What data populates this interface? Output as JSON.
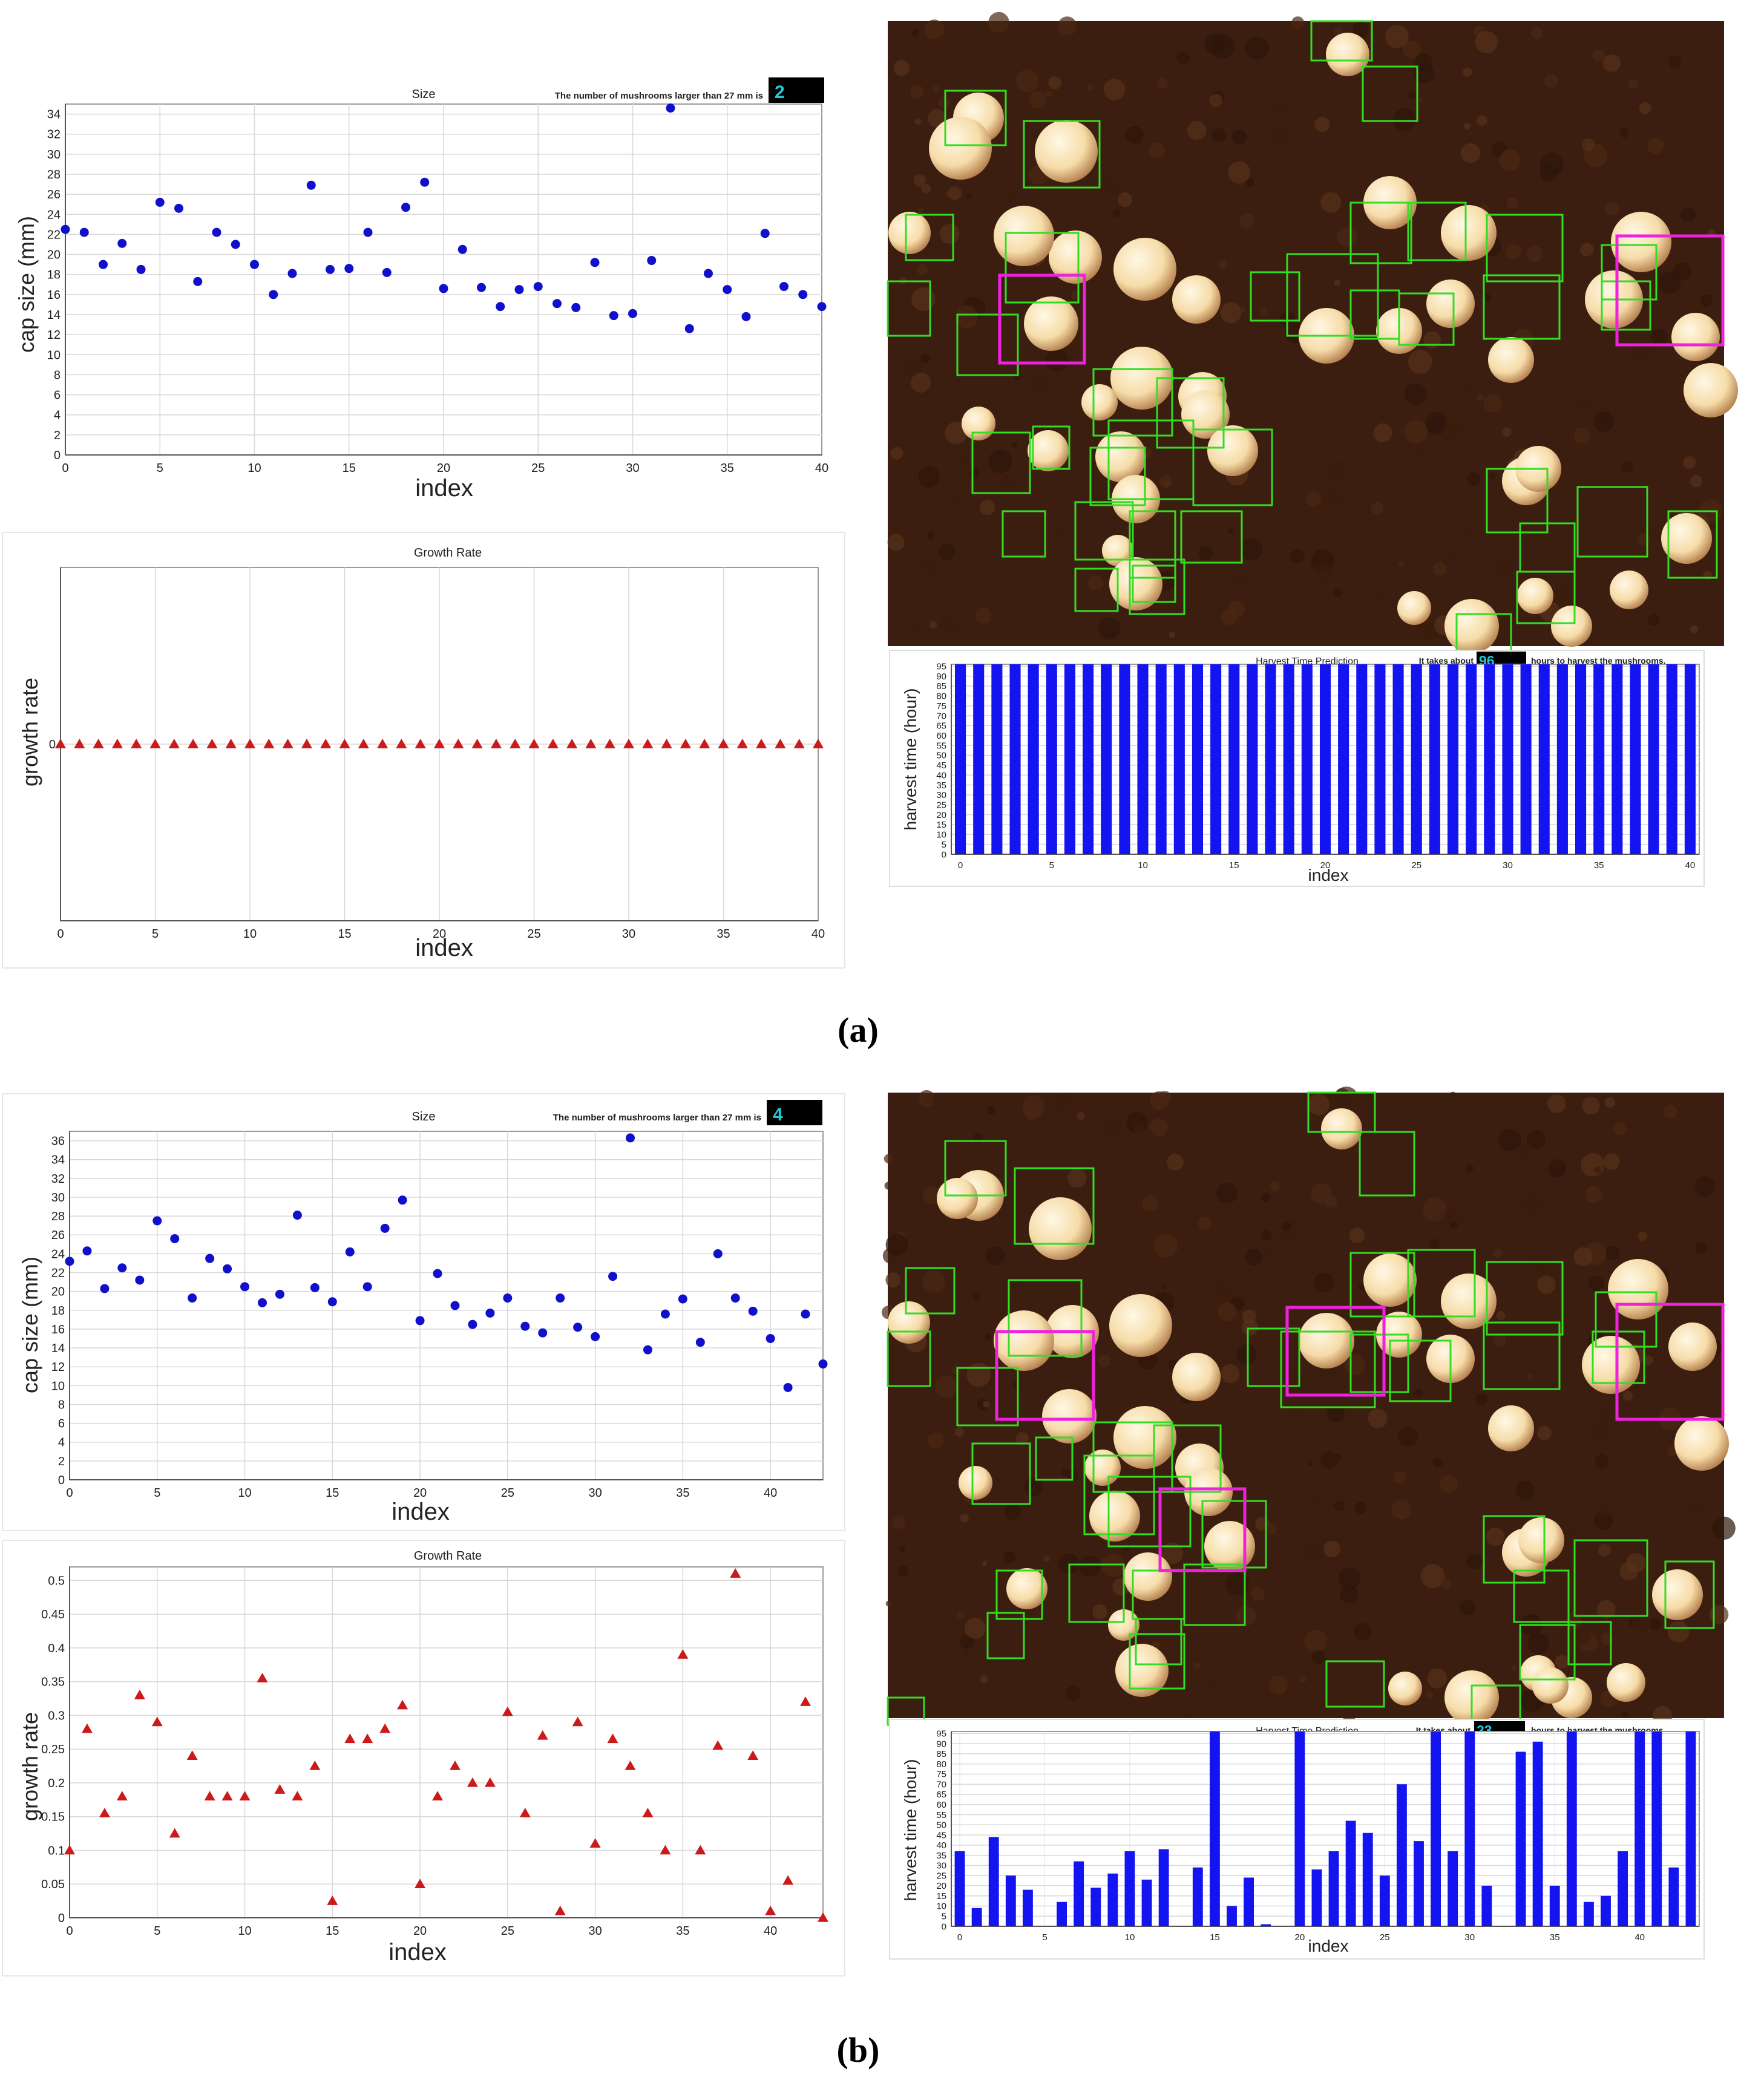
{
  "captions": {
    "a": "(a)",
    "b": "(b)"
  },
  "colors": {
    "dot": "#1010cc",
    "tri": "#cc1a1a",
    "bar": "#1414f0",
    "green": "#33dd22",
    "magenta": "#ee22dd",
    "count_text": "#22c8d8",
    "soil": "#3c1e10"
  },
  "panels": {
    "a": {
      "size_count_label": "The number of mushrooms larger than 27 mm is",
      "size_count_value": "2",
      "harvest_text_pre": "It takes about",
      "harvest_text_value": "96",
      "harvest_text_post": "hours to harvest the mushrooms."
    },
    "b": {
      "size_count_label": "The number of mushrooms larger than 27 mm is",
      "size_count_value": "4",
      "harvest_text_pre": "It takes about",
      "harvest_text_value": "23",
      "harvest_text_post": "hours to harvest the mushrooms."
    }
  },
  "chart_data": [
    {
      "id": "a_size",
      "type": "scatter",
      "marker": "circle",
      "title": "Size",
      "xlabel": "index",
      "ylabel": "cap size (mm)",
      "xlim": [
        0,
        40
      ],
      "ylim": [
        0,
        35
      ],
      "xticks": [
        0,
        5,
        10,
        15,
        20,
        25,
        30,
        35,
        40
      ],
      "yticks": [
        0,
        2,
        4,
        6,
        8,
        10,
        12,
        14,
        16,
        18,
        20,
        22,
        24,
        26,
        28,
        30,
        32,
        34
      ],
      "values": [
        22.5,
        22.2,
        19.0,
        21.1,
        18.5,
        25.2,
        24.6,
        17.3,
        22.2,
        21.0,
        19.0,
        16.0,
        18.1,
        26.9,
        18.5,
        18.6,
        22.2,
        18.2,
        24.7,
        27.2,
        16.6,
        20.5,
        16.7,
        14.8,
        16.5,
        16.8,
        15.1,
        14.7,
        19.2,
        13.9,
        14.1,
        19.4,
        34.6,
        12.6,
        18.1,
        16.5,
        13.8,
        22.1,
        16.8,
        16.0,
        14.8
      ]
    },
    {
      "id": "a_growth",
      "type": "scatter",
      "marker": "triangle",
      "title": "Growth Rate",
      "xlabel": "index",
      "ylabel": "growth rate",
      "xlim": [
        0,
        40
      ],
      "ylim": [
        -1,
        1
      ],
      "xticks": [
        0,
        5,
        10,
        15,
        20,
        25,
        30,
        35,
        40
      ],
      "yticks": [
        0
      ],
      "values": [
        0,
        0,
        0,
        0,
        0,
        0,
        0,
        0,
        0,
        0,
        0,
        0,
        0,
        0,
        0,
        0,
        0,
        0,
        0,
        0,
        0,
        0,
        0,
        0,
        0,
        0,
        0,
        0,
        0,
        0,
        0,
        0,
        0,
        0,
        0,
        0,
        0,
        0,
        0,
        0,
        0
      ]
    },
    {
      "id": "a_harvest",
      "type": "bar",
      "title": "Harvest Time Prediction",
      "xlabel": "index",
      "ylabel": "harvest  time  (hour)",
      "xlim": [
        0,
        40
      ],
      "ylim": [
        0,
        96
      ],
      "xticks": [
        0,
        5,
        10,
        15,
        20,
        25,
        30,
        35,
        40
      ],
      "yticks": [
        0,
        5,
        10,
        15,
        20,
        25,
        30,
        35,
        40,
        45,
        50,
        55,
        60,
        65,
        70,
        75,
        80,
        85,
        90,
        95
      ],
      "values": [
        96,
        96,
        96,
        96,
        96,
        96,
        96,
        96,
        96,
        96,
        96,
        96,
        96,
        96,
        96,
        96,
        96,
        96,
        96,
        96,
        96,
        96,
        96,
        96,
        96,
        96,
        96,
        96,
        96,
        96,
        96,
        96,
        96,
        96,
        96,
        96,
        96,
        96,
        96,
        96,
        96
      ]
    },
    {
      "id": "b_size",
      "type": "scatter",
      "marker": "circle",
      "title": "Size",
      "xlabel": "index",
      "ylabel": "cap size (mm)",
      "xlim": [
        0,
        43
      ],
      "ylim": [
        0,
        37
      ],
      "xticks": [
        0,
        5,
        10,
        15,
        20,
        25,
        30,
        35,
        40
      ],
      "yticks": [
        0,
        2,
        4,
        6,
        8,
        10,
        12,
        14,
        16,
        18,
        20,
        22,
        24,
        26,
        28,
        30,
        32,
        34,
        36
      ],
      "values": [
        23.2,
        24.3,
        20.3,
        22.5,
        21.2,
        27.5,
        25.6,
        19.3,
        23.5,
        22.4,
        20.5,
        18.8,
        19.7,
        28.1,
        20.4,
        18.9,
        24.2,
        20.5,
        26.7,
        29.7,
        16.9,
        21.9,
        18.5,
        16.5,
        17.7,
        19.3,
        16.3,
        15.6,
        19.3,
        16.2,
        15.2,
        21.6,
        36.3,
        13.8,
        17.6,
        19.2,
        14.6,
        24.0,
        19.3,
        17.9,
        15.0,
        9.8,
        17.6,
        12.3
      ]
    },
    {
      "id": "b_growth",
      "type": "scatter",
      "marker": "triangle",
      "title": "Growth Rate",
      "xlabel": "index",
      "ylabel": "growth rate",
      "xlim": [
        0,
        43
      ],
      "ylim": [
        0,
        0.52
      ],
      "xticks": [
        0,
        5,
        10,
        15,
        20,
        25,
        30,
        35,
        40
      ],
      "yticks": [
        0,
        0.05,
        0.1,
        0.15,
        0.2,
        0.25,
        0.3,
        0.35,
        0.4,
        0.45,
        0.5
      ],
      "values": [
        0.1,
        0.28,
        0.155,
        0.18,
        0.33,
        0.29,
        0.125,
        0.24,
        0.18,
        0.18,
        0.18,
        0.355,
        0.19,
        0.18,
        0.225,
        0.025,
        0.265,
        0.265,
        0.28,
        0.315,
        0.05,
        0.18,
        0.225,
        0.2,
        0.2,
        0.305,
        0.155,
        0.27,
        0.01,
        0.29,
        0.11,
        0.265,
        0.225,
        0.155,
        0.1,
        0.39,
        0.1,
        0.255,
        0.51,
        0.24,
        0.01,
        0.055,
        0.32,
        0.0
      ]
    },
    {
      "id": "b_harvest",
      "type": "bar",
      "title": "Harvest Time Prediction",
      "xlabel": "index",
      "ylabel": "harvest  time  (hour)",
      "xlim": [
        0,
        43
      ],
      "ylim": [
        0,
        96
      ],
      "xticks": [
        0,
        5,
        10,
        15,
        20,
        25,
        30,
        35,
        40
      ],
      "yticks": [
        0,
        5,
        10,
        15,
        20,
        25,
        30,
        35,
        40,
        45,
        50,
        55,
        60,
        65,
        70,
        75,
        80,
        85,
        90,
        95
      ],
      "values": [
        37,
        9,
        44,
        25,
        18,
        0,
        12,
        32,
        19,
        26,
        37,
        23,
        38,
        0,
        29,
        96,
        10,
        24,
        1,
        0,
        96,
        28,
        37,
        52,
        46,
        25,
        70,
        42,
        96,
        37,
        96,
        20,
        0,
        86,
        91,
        20,
        96,
        12,
        15,
        37,
        96,
        96,
        29,
        96
      ]
    }
  ]
}
